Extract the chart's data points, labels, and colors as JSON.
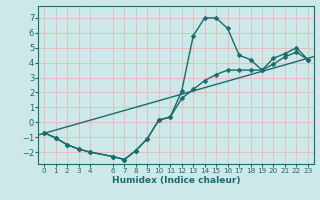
{
  "title": "",
  "xlabel": "Humidex (Indice chaleur)",
  "bg_color": "#cce8e8",
  "grid_color": "#e8b8b8",
  "line_color": "#1a6b6b",
  "xlim": [
    -0.5,
    23.5
  ],
  "ylim": [
    -2.8,
    7.8
  ],
  "yticks": [
    -2,
    -1,
    0,
    1,
    2,
    3,
    4,
    5,
    6,
    7
  ],
  "xticks": [
    0,
    1,
    2,
    3,
    4,
    6,
    7,
    8,
    9,
    10,
    11,
    12,
    13,
    14,
    15,
    16,
    17,
    18,
    19,
    20,
    21,
    22,
    23
  ],
  "curve1_x": [
    0,
    1,
    2,
    3,
    4,
    6,
    7,
    8,
    9,
    10,
    11,
    12,
    13,
    14,
    15,
    16,
    17,
    18,
    19,
    20,
    21,
    22,
    23
  ],
  "curve1_y": [
    -0.7,
    -1.05,
    -1.5,
    -1.8,
    -2.0,
    -2.3,
    -2.5,
    -1.9,
    -1.1,
    0.15,
    0.35,
    2.1,
    5.8,
    7.0,
    7.0,
    6.3,
    4.5,
    4.2,
    3.5,
    4.3,
    4.6,
    5.0,
    4.2
  ],
  "curve2_x": [
    0,
    1,
    2,
    3,
    4,
    6,
    7,
    8,
    9,
    10,
    11,
    12,
    13,
    14,
    15,
    16,
    17,
    18,
    19,
    20,
    21,
    22,
    23
  ],
  "curve2_y": [
    -0.7,
    -1.05,
    -1.5,
    -1.8,
    -2.0,
    -2.3,
    -2.5,
    -1.9,
    -1.1,
    0.15,
    0.35,
    1.6,
    2.2,
    2.8,
    3.2,
    3.5,
    3.5,
    3.5,
    3.5,
    3.9,
    4.4,
    4.7,
    4.2
  ],
  "line3_x": [
    -0.5,
    23.5
  ],
  "line3_y": [
    -0.85,
    4.4
  ]
}
